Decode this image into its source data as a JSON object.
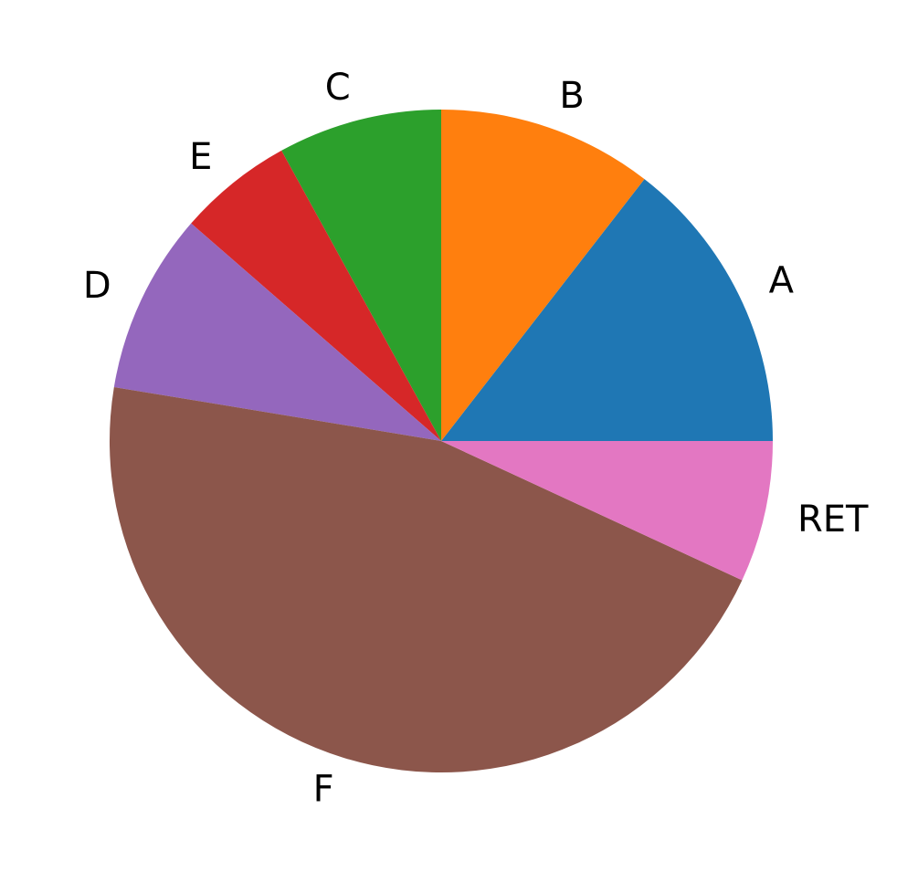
{
  "chart_data": {
    "type": "pie",
    "start_angle_deg": 0,
    "direction": "counterclockwise",
    "title": "",
    "legend": false,
    "slices": [
      {
        "label": "A",
        "value": 14.5,
        "color": "#1f77b4"
      },
      {
        "label": "B",
        "value": 10.5,
        "color": "#ff7f0e"
      },
      {
        "label": "C",
        "value": 8.0,
        "color": "#2ca02c"
      },
      {
        "label": "E",
        "value": 5.6,
        "color": "#d62728"
      },
      {
        "label": "D",
        "value": 8.8,
        "color": "#9467bd"
      },
      {
        "label": "F",
        "value": 45.7,
        "color": "#8c564b"
      },
      {
        "label": "RET",
        "value": 6.9,
        "color": "#e377c2"
      }
    ]
  }
}
